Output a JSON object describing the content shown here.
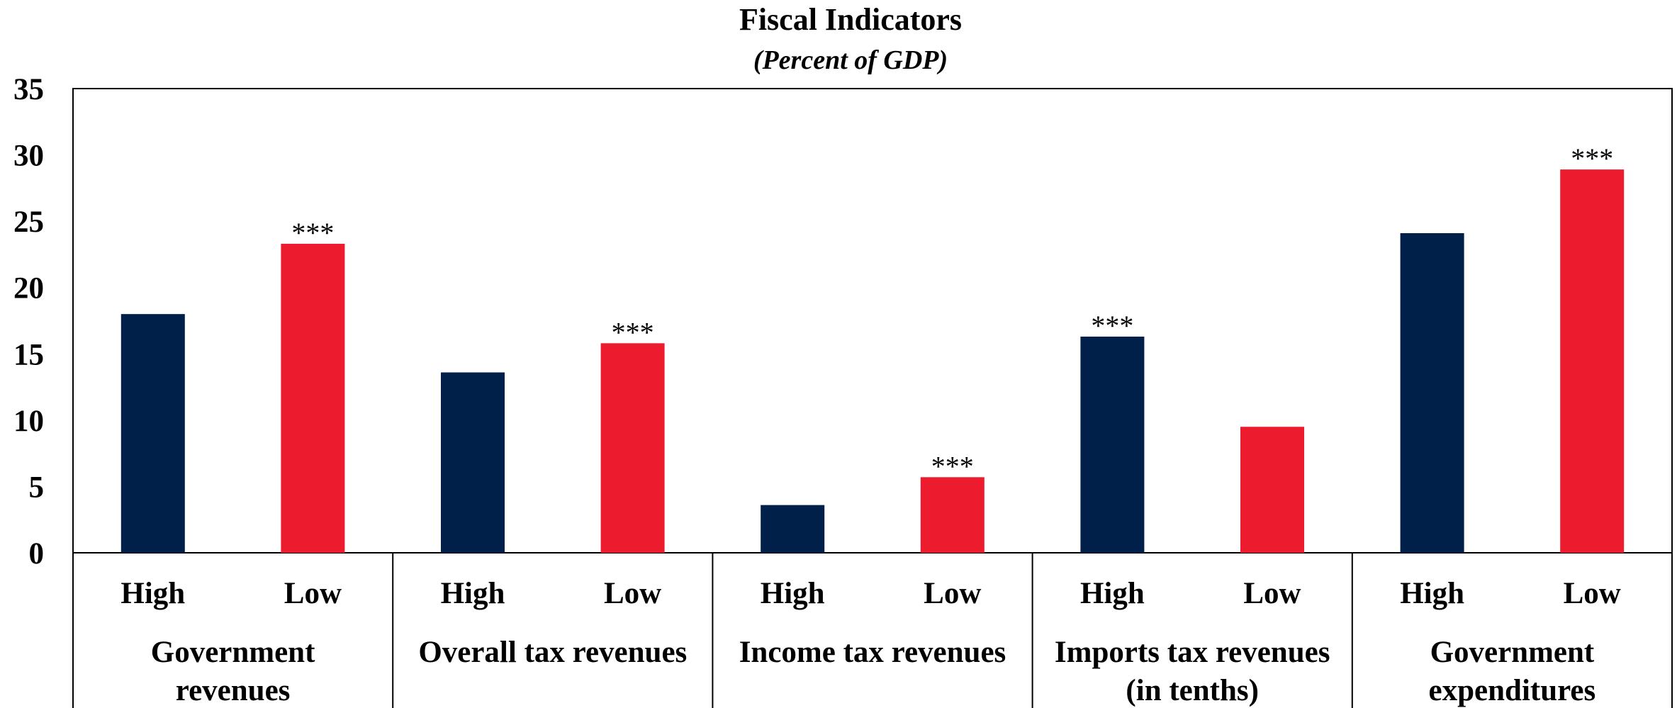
{
  "chart_data": {
    "type": "bar",
    "title": "Fiscal Indicators",
    "subtitle": "(Percent of GDP)",
    "ylim": [
      0,
      35
    ],
    "yticks": [
      "0",
      "5",
      "10",
      "15",
      "20",
      "25",
      "30",
      "35"
    ],
    "groups": [
      {
        "label_lines": [
          "Government",
          "revenues"
        ],
        "bars": [
          {
            "category": "High",
            "value": 18.0,
            "sig": ""
          },
          {
            "category": "Low",
            "value": 23.3,
            "sig": "***"
          }
        ]
      },
      {
        "label_lines": [
          "Overall tax revenues"
        ],
        "bars": [
          {
            "category": "High",
            "value": 13.6,
            "sig": ""
          },
          {
            "category": "Low",
            "value": 15.8,
            "sig": "***"
          }
        ]
      },
      {
        "label_lines": [
          "Income tax revenues"
        ],
        "bars": [
          {
            "category": "High",
            "value": 3.6,
            "sig": ""
          },
          {
            "category": "Low",
            "value": 5.7,
            "sig": "***"
          }
        ]
      },
      {
        "label_lines": [
          "Imports tax revenues",
          "(in tenths)"
        ],
        "bars": [
          {
            "category": "High",
            "value": 16.3,
            "sig": "***"
          },
          {
            "category": "Low",
            "value": 9.5,
            "sig": ""
          }
        ]
      },
      {
        "label_lines": [
          "Government",
          "expenditures"
        ],
        "bars": [
          {
            "category": "High",
            "value": 24.1,
            "sig": ""
          },
          {
            "category": "Low",
            "value": 28.9,
            "sig": "***"
          }
        ]
      }
    ],
    "colors": {
      "High": "#00204a",
      "Low": "#ec1c2e"
    },
    "grid": false,
    "legend": "none"
  }
}
